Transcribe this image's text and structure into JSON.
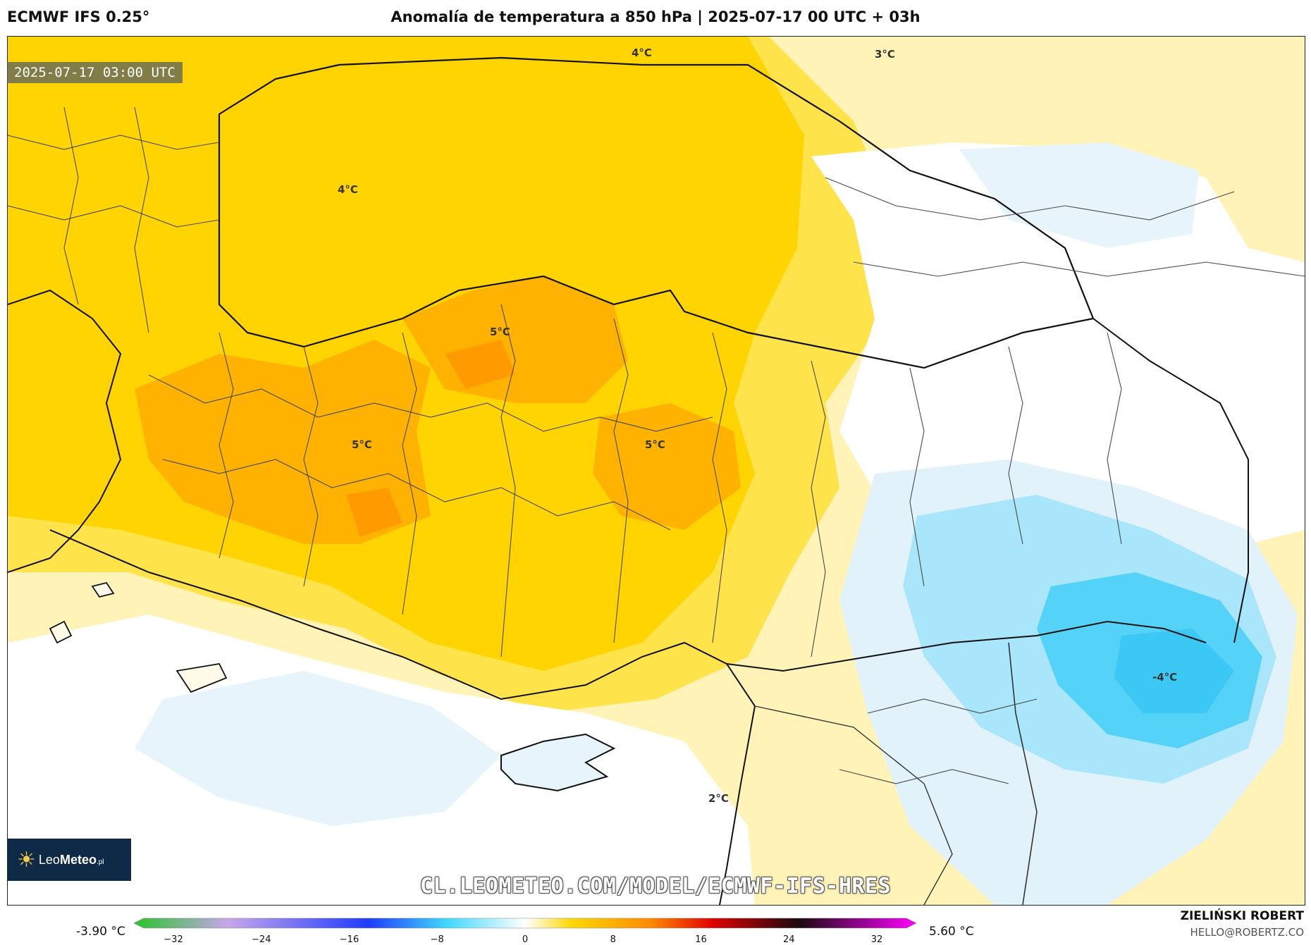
{
  "header": {
    "model": "ECMWF IFS 0.25°",
    "title": "Anomalía de temperatura a 850 hPa | 2025-07-17 00 UTC + 03h"
  },
  "map": {
    "timestamp": "2025-07-17 03:00 UTC",
    "contour_labels": [
      {
        "text": "4°C"
      },
      {
        "text": "3°C"
      },
      {
        "text": "4°C"
      },
      {
        "text": "5°C"
      },
      {
        "text": "5°C"
      },
      {
        "text": "5°C"
      },
      {
        "text": "-4°C"
      },
      {
        "text": "2°C"
      }
    ],
    "url": "CL.LEOMETEO.COM/MODEL/ECMWF-IFS-HRES"
  },
  "logo": {
    "prefix": "Leo",
    "brand": "Meteo",
    "suffix": ".pl"
  },
  "colorbar": {
    "min_label": "-3.90 °C",
    "max_label": "5.60 °C",
    "ticks": [
      "−32",
      "−24",
      "−16",
      "−8",
      "0",
      "8",
      "16",
      "24",
      "32"
    ],
    "colors": {
      "green": "#27c42a",
      "lavender": "#c7a6e9",
      "blue": "#1f3cff",
      "cyan": "#40d8ff",
      "white": "#ffffff",
      "yellow": "#ffd800",
      "orange": "#ff8a00",
      "red": "#e00000",
      "dark": "#1a0a10",
      "magenta": "#ff00ff"
    }
  },
  "credit": {
    "author": "ZIELIŃSKI ROBERT",
    "email": "HELLO@ROBERTZ.CO"
  }
}
